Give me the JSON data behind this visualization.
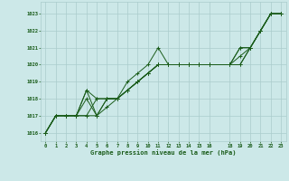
{
  "title": "Graphe pression niveau de la mer (hPa)",
  "bg_color": "#cce8e8",
  "grid_color": "#aacccc",
  "line_color": "#1a5c1a",
  "text_color": "#1a5c1a",
  "xlim": [
    -0.5,
    23.5
  ],
  "ylim": [
    1015.5,
    1023.7
  ],
  "yticks": [
    1016,
    1017,
    1018,
    1019,
    1020,
    1021,
    1022,
    1023
  ],
  "xticks": [
    0,
    1,
    2,
    3,
    4,
    5,
    6,
    7,
    8,
    9,
    10,
    11,
    12,
    13,
    14,
    15,
    16,
    18,
    19,
    20,
    21,
    22,
    23
  ],
  "series": [
    {
      "x": [
        0,
        1,
        2,
        3,
        4,
        5,
        6,
        7,
        8,
        9,
        10,
        11,
        12,
        13,
        14,
        15,
        16,
        18,
        19,
        20,
        21,
        22,
        23
      ],
      "y": [
        1016.0,
        1017.0,
        1017.0,
        1017.0,
        1017.0,
        1018.0,
        1018.0,
        1018.0,
        1019.0,
        1019.5,
        1020.0,
        1021.0,
        1020.0,
        1020.0,
        1020.0,
        1020.0,
        1020.0,
        1020.0,
        1021.0,
        1021.0,
        1022.0,
        1023.0,
        1023.0
      ]
    },
    {
      "x": [
        0,
        1,
        2,
        3,
        4,
        5,
        6,
        7,
        8,
        9,
        10,
        11,
        12,
        13,
        14,
        15,
        16,
        18,
        19,
        20,
        21,
        22,
        23
      ],
      "y": [
        1016.0,
        1017.0,
        1017.0,
        1017.0,
        1018.5,
        1018.0,
        1018.0,
        1018.0,
        1018.5,
        1019.0,
        1019.5,
        1020.0,
        1020.0,
        1020.0,
        1020.0,
        1020.0,
        1020.0,
        1020.0,
        1020.5,
        1021.0,
        1022.0,
        1023.0,
        1023.0
      ]
    },
    {
      "x": [
        0,
        1,
        2,
        3,
        4,
        5,
        6,
        7,
        8,
        9,
        10,
        11,
        12,
        13,
        14,
        15,
        16,
        18,
        19,
        20,
        21,
        22,
        23
      ],
      "y": [
        1016.0,
        1017.0,
        1017.0,
        1017.0,
        1018.0,
        1017.0,
        1018.0,
        1018.0,
        1018.5,
        1019.0,
        1019.5,
        1020.0,
        1020.0,
        1020.0,
        1020.0,
        1020.0,
        1020.0,
        1020.0,
        1020.0,
        1021.0,
        1022.0,
        1023.0,
        1023.0
      ]
    },
    {
      "x": [
        0,
        1,
        2,
        3,
        4,
        5,
        6,
        7,
        8,
        9,
        10,
        11,
        12,
        13,
        14,
        15,
        16,
        18,
        19,
        20,
        21,
        22,
        23
      ],
      "y": [
        1016.0,
        1017.0,
        1017.0,
        1017.0,
        1018.5,
        1017.0,
        1017.5,
        1018.0,
        1018.5,
        1019.0,
        1019.5,
        1020.0,
        1020.0,
        1020.0,
        1020.0,
        1020.0,
        1020.0,
        1020.0,
        1020.0,
        1021.0,
        1022.0,
        1023.0,
        1023.0
      ]
    },
    {
      "x": [
        0,
        1,
        2,
        3,
        4,
        5,
        6,
        7,
        8,
        9,
        10,
        11,
        12,
        13,
        14,
        15,
        16,
        18,
        19,
        20,
        21,
        22,
        23
      ],
      "y": [
        1016.0,
        1017.0,
        1017.0,
        1017.0,
        1017.0,
        1017.0,
        1018.0,
        1018.0,
        1018.5,
        1019.0,
        1019.5,
        1020.0,
        1020.0,
        1020.0,
        1020.0,
        1020.0,
        1020.0,
        1020.0,
        1021.0,
        1021.0,
        1022.0,
        1023.0,
        1023.0
      ]
    }
  ]
}
